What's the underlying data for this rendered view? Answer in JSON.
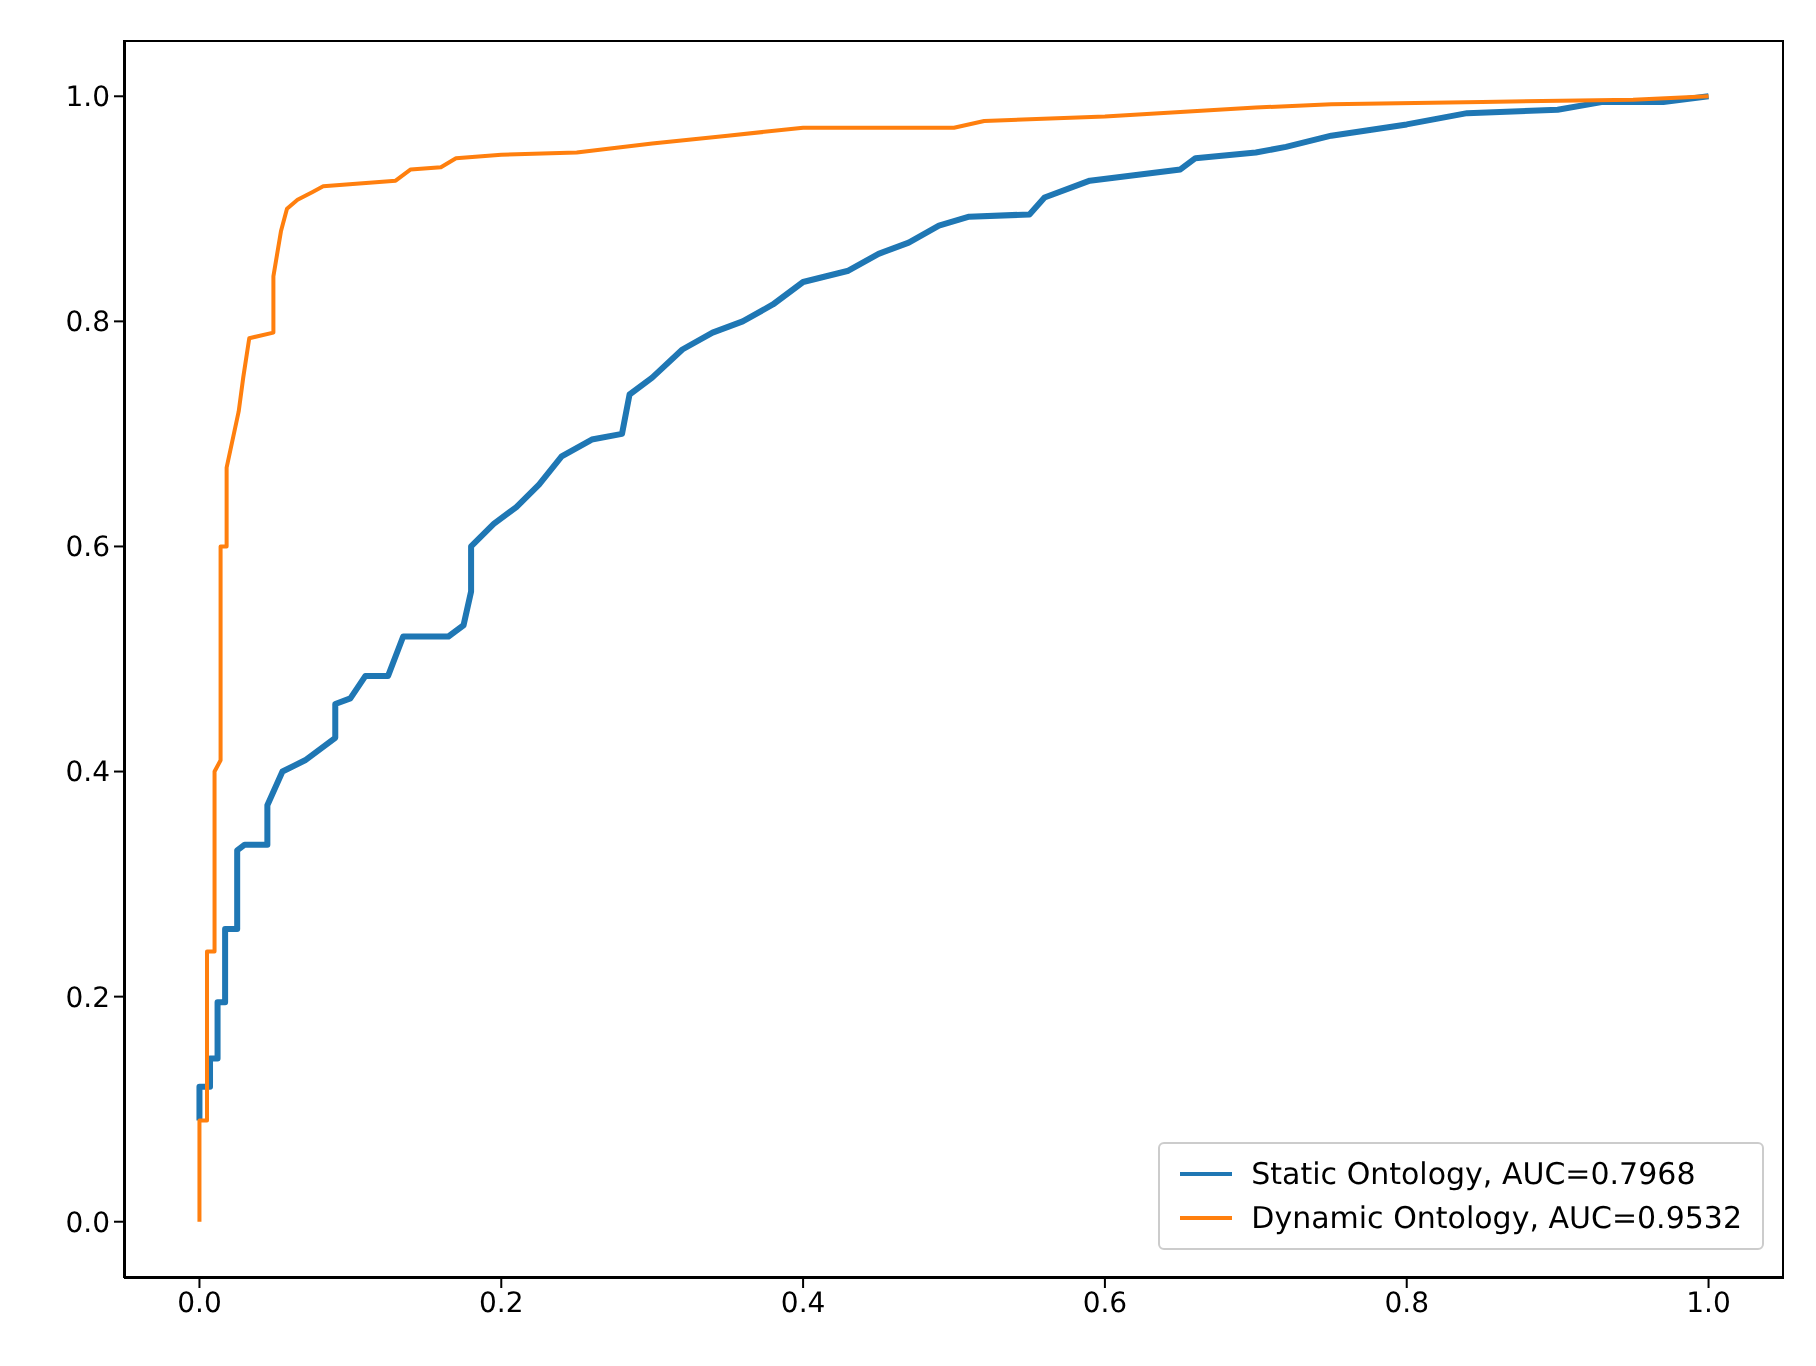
{
  "chart_data": {
    "type": "line",
    "xlim": [
      -0.05,
      1.05
    ],
    "ylim": [
      -0.05,
      1.05
    ],
    "xticks": [
      {
        "value": 0,
        "label": "0.0"
      },
      {
        "value": 0.2,
        "label": "0.2"
      },
      {
        "value": 0.4,
        "label": "0.4"
      },
      {
        "value": 0.6,
        "label": "0.6"
      },
      {
        "value": 0.8,
        "label": "0.8"
      },
      {
        "value": 1,
        "label": "1.0"
      }
    ],
    "yticks": [
      {
        "value": 0,
        "label": "0.0"
      },
      {
        "value": 0.2,
        "label": "0.2"
      },
      {
        "value": 0.4,
        "label": "0.4"
      },
      {
        "value": 0.6,
        "label": "0.6"
      },
      {
        "value": 0.8,
        "label": "0.8"
      },
      {
        "value": 1,
        "label": "1.0"
      }
    ],
    "grid": false,
    "legend": "bottom right",
    "series": [
      {
        "name": "Static Ontology, AUC=0.7968",
        "color": "#1f77b4",
        "x": [
          0,
          0,
          0.007,
          0.007,
          0.012,
          0.012,
          0.017,
          0.017,
          0.025,
          0.025,
          0.03,
          0.045,
          0.045,
          0.055,
          0.07,
          0.08,
          0.09,
          0.09,
          0.1,
          0.11,
          0.125,
          0.135,
          0.165,
          0.175,
          0.18,
          0.18,
          0.195,
          0.21,
          0.225,
          0.24,
          0.26,
          0.28,
          0.285,
          0.3,
          0.32,
          0.34,
          0.36,
          0.38,
          0.4,
          0.43,
          0.45,
          0.47,
          0.49,
          0.51,
          0.55,
          0.56,
          0.59,
          0.65,
          0.66,
          0.7,
          0.72,
          0.75,
          0.8,
          0.84,
          0.9,
          0.93,
          0.97,
          1
        ],
        "values": [
          0.09,
          0.12,
          0.12,
          0.145,
          0.145,
          0.195,
          0.195,
          0.26,
          0.26,
          0.33,
          0.335,
          0.335,
          0.37,
          0.4,
          0.41,
          0.42,
          0.43,
          0.46,
          0.465,
          0.485,
          0.485,
          0.52,
          0.52,
          0.53,
          0.56,
          0.6,
          0.62,
          0.635,
          0.655,
          0.68,
          0.695,
          0.7,
          0.735,
          0.75,
          0.775,
          0.79,
          0.8,
          0.815,
          0.835,
          0.845,
          0.86,
          0.87,
          0.885,
          0.893,
          0.895,
          0.91,
          0.925,
          0.935,
          0.945,
          0.95,
          0.955,
          0.965,
          0.975,
          0.985,
          0.988,
          0.995,
          0.995,
          1
        ]
      },
      {
        "name": "Dynamic Ontology, AUC=0.9532",
        "color": "#ff7f0e",
        "x": [
          0,
          0,
          0.005,
          0.005,
          0.01,
          0.01,
          0.014,
          0.014,
          0.018,
          0.018,
          0.026,
          0.029,
          0.033,
          0.049,
          0.049,
          0.054,
          0.058,
          0.065,
          0.075,
          0.082,
          0.13,
          0.14,
          0.16,
          0.17,
          0.2,
          0.25,
          0.3,
          0.35,
          0.4,
          0.5,
          0.52,
          0.6,
          0.7,
          0.75,
          0.85,
          0.95,
          1
        ],
        "values": [
          0,
          0.09,
          0.09,
          0.24,
          0.24,
          0.4,
          0.41,
          0.6,
          0.6,
          0.67,
          0.72,
          0.75,
          0.785,
          0.79,
          0.84,
          0.88,
          0.9,
          0.908,
          0.915,
          0.92,
          0.925,
          0.935,
          0.937,
          0.945,
          0.948,
          0.95,
          0.958,
          0.965,
          0.972,
          0.972,
          0.978,
          0.982,
          0.99,
          0.993,
          0.995,
          0.997,
          1
        ]
      }
    ]
  }
}
